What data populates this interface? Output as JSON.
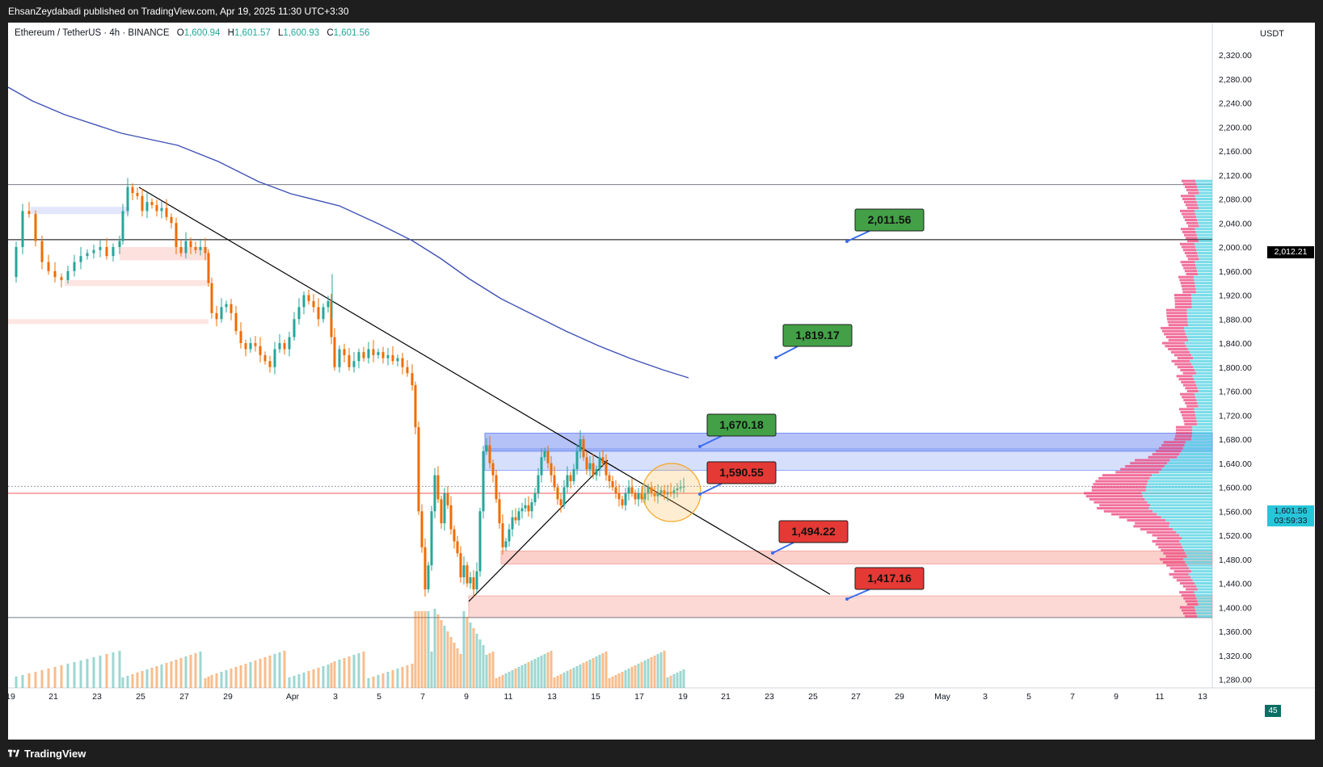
{
  "header": {
    "published_text": "EhsanZeydabadi published on TradingView.com, Apr 19, 2025 11:30 UTC+3:30"
  },
  "legend": {
    "symbol": "Ethereum / TetherUS · 4h · BINANCE",
    "o_label": "O",
    "o_value": "1,600.94",
    "h_label": "H",
    "h_value": "1,601.57",
    "l_label": "L",
    "l_value": "1,600.93",
    "c_label": "C",
    "c_value": "1,601.56"
  },
  "price_axis": {
    "unit": "USDT",
    "ticks": [
      "2,320.00",
      "2,280.00",
      "2,240.00",
      "2,200.00",
      "2,160.00",
      "2,120.00",
      "2,080.00",
      "2,040.00",
      "2,000.00",
      "1,960.00",
      "1,920.00",
      "1,880.00",
      "1,840.00",
      "1,800.00",
      "1,760.00",
      "1,720.00",
      "1,680.00",
      "1,640.00",
      "1,600.00",
      "1,560.00",
      "1,520.00",
      "1,480.00",
      "1,440.00",
      "1,400.00",
      "1,360.00",
      "1,320.00",
      "1,280.00"
    ],
    "current_price_tag": "1,601.56",
    "countdown": "03:59:33",
    "level_tag": "2,012.21",
    "volume_tag": "45"
  },
  "time_axis": {
    "ticks": [
      "19",
      "21",
      "23",
      "25",
      "27",
      "29",
      "Apr",
      "3",
      "5",
      "7",
      "9",
      "11",
      "13",
      "15",
      "17",
      "19",
      "21",
      "23",
      "25",
      "27",
      "29",
      "May",
      "3",
      "5",
      "7",
      "9",
      "11",
      "13"
    ]
  },
  "annotations": [
    {
      "text": "2,011.56",
      "color": "#43a047",
      "price": 2011.56
    },
    {
      "text": "1,819.17",
      "color": "#43a047",
      "price": 1819.17
    },
    {
      "text": "1,670.18",
      "color": "#43a047",
      "price": 1670.18
    },
    {
      "text": "1,590.55",
      "color": "#e53935",
      "price": 1590.55
    },
    {
      "text": "1,494.22",
      "color": "#e53935",
      "price": 1494.22
    },
    {
      "text": "1,417.16",
      "color": "#e53935",
      "price": 1417.16
    }
  ],
  "footer": {
    "brand": "TradingView"
  },
  "colors": {
    "up": "#26a69a",
    "down": "#ef6c00",
    "ma": "#3f51b5",
    "supply_zone": "#6b8cf5",
    "demand_zone": "#f8b4ae",
    "profile_up": "#4dd0e1",
    "profile_down": "#ec407a"
  },
  "chart_data": {
    "type": "candlestick",
    "symbol": "Ethereum / TetherUS",
    "interval": "4h",
    "exchange": "BINANCE",
    "ylim": [
      1280,
      2340
    ],
    "last_close": 1601.56,
    "horizontal_levels": [
      2104,
      2012.21,
      1383
    ],
    "zones": [
      {
        "type": "supply",
        "from": 1660,
        "to": 1690
      },
      {
        "type": "supply",
        "from": 1628,
        "to": 1664
      },
      {
        "type": "demand",
        "from": 1472,
        "to": 1494
      },
      {
        "type": "demand",
        "from": 1383,
        "to": 1419
      }
    ]
  }
}
